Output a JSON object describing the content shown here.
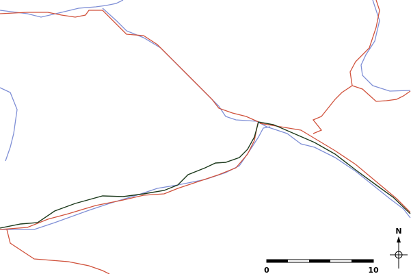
{
  "north": "N",
  "scale": {
    "labels": [
      "0",
      "10"
    ]
  }
}
